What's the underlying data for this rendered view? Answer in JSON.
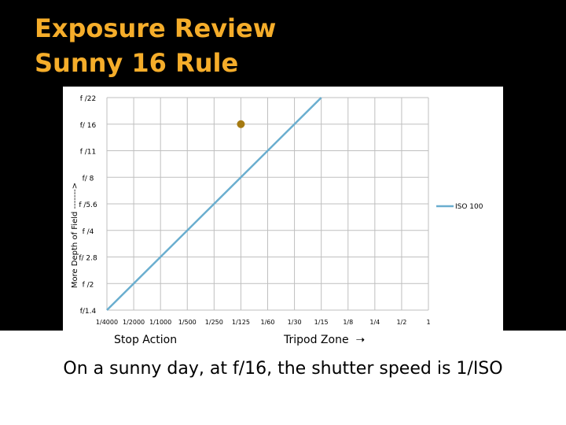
{
  "slide": {
    "title_line1": "Exposure Review",
    "title_line2": "Sunny 16 Rule",
    "caption": "On a sunny day, at f/16, the shutter speed is 1/ISO",
    "stop_action": "Stop Action",
    "tripod_zone": "Tripod Zone",
    "arrow_icon": "right-arrow-icon"
  },
  "colors": {
    "title": "#f5ad2a",
    "series_line": "#6aaecf",
    "marker": "#a57a12",
    "grid": "#bfbfbf",
    "background": "#000000"
  },
  "chart_data": {
    "type": "line",
    "title": "",
    "xlabel": "",
    "ylabel": "More Depth of Field ------->",
    "x_categories": [
      "1/4000",
      "1/2000",
      "1/1000",
      "1/500",
      "1/250",
      "1/125",
      "1/60",
      "1/30",
      "1/15",
      "1/8",
      "1/4",
      "1/2",
      "1"
    ],
    "y_categories": [
      "f/1.4",
      "f/2",
      "f/2.8",
      "f/4",
      "f/5.6",
      "f/8",
      "f/11",
      "f/16",
      "f/22"
    ],
    "y_tick_labels": [
      "f/1.4",
      "f /2",
      "f/ 2.8",
      "f /4",
      "f /5.6",
      "f/ 8",
      "f /11",
      "f/ 16",
      "f /22"
    ],
    "x_tick_labels": [
      "1/4000",
      "1/2000",
      "1/1000",
      "1/500",
      "1/250",
      "1/125",
      "1/60",
      "1/30",
      "1/15",
      "1/8",
      "1/4",
      "1/2",
      "1"
    ],
    "series": [
      {
        "name": "ISO 100",
        "points": [
          {
            "x": "1/4000",
            "y": "f/1.4"
          },
          {
            "x": "1/2000",
            "y": "f/2"
          },
          {
            "x": "1/1000",
            "y": "f/2.8"
          },
          {
            "x": "1/500",
            "y": "f/4"
          },
          {
            "x": "1/250",
            "y": "f/5.6"
          },
          {
            "x": "1/125",
            "y": "f/8"
          },
          {
            "x": "1/60",
            "y": "f/11"
          },
          {
            "x": "1/30",
            "y": "f/16"
          },
          {
            "x": "1/15",
            "y": "f/22"
          }
        ]
      }
    ],
    "highlight_point": {
      "x": "1/125",
      "y": "f/16"
    },
    "grid": true,
    "legend_position": "right"
  }
}
